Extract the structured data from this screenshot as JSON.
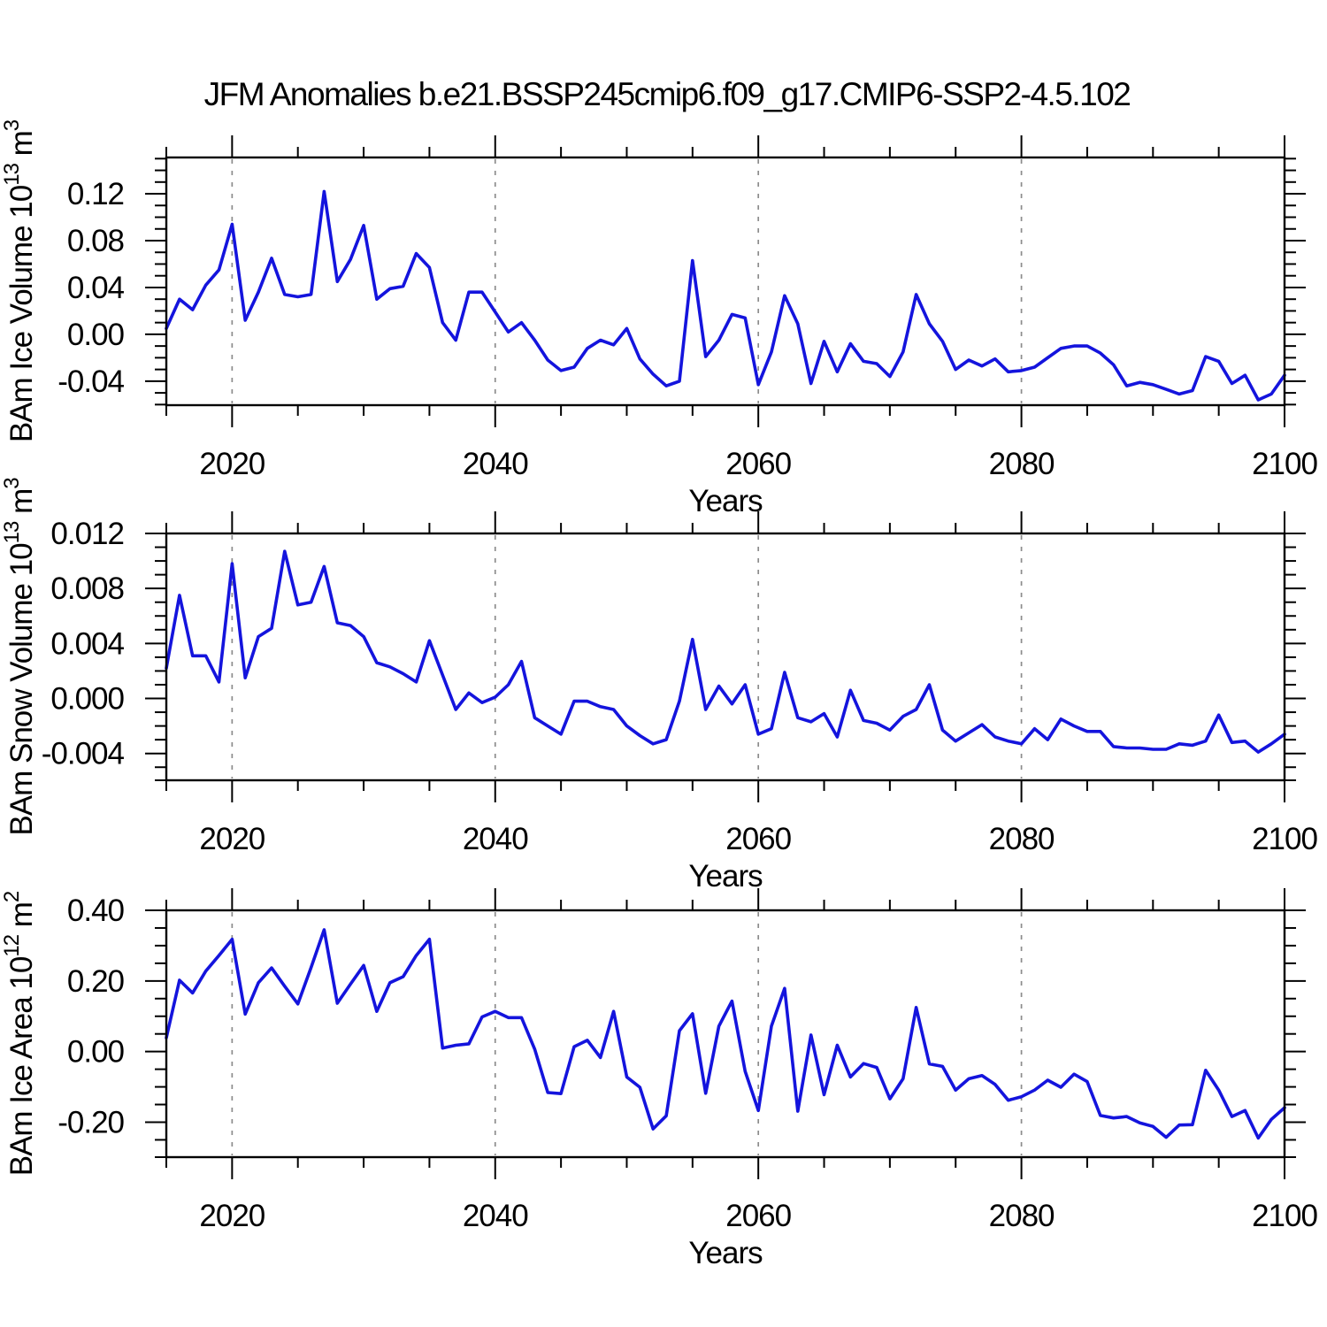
{
  "title": "JFM Anomalies b.e21.BSSP245cmip6.f09_g17.CMIP6-SSP2-4.5.102",
  "colors": {
    "line": "#1414dd",
    "grid": "#8c8c8c",
    "axis": "#000000",
    "text": "#000000",
    "background": "#ffffff"
  },
  "chart_data": [
    {
      "type": "line",
      "name": "bam-ice-volume",
      "ylabel_text": "BAm Ice Volume 10^13 m^3",
      "ylabel_parts": {
        "base": "BAm Ice Volume 10",
        "exp": "13",
        "mid": " m",
        "exp2": "3"
      },
      "xlabel": "Years",
      "xlim": [
        2015,
        2100
      ],
      "ylim": [
        -0.0605,
        0.151
      ],
      "x_major_ticks": [
        {
          "v": 2020,
          "label": "2020"
        },
        {
          "v": 2040,
          "label": "2040"
        },
        {
          "v": 2060,
          "label": "2060"
        },
        {
          "v": 2080,
          "label": "2080"
        },
        {
          "v": 2100,
          "label": "2100"
        }
      ],
      "x_minor_step": 5,
      "y_major_ticks": [
        {
          "v": 0.12,
          "label": "0.12"
        },
        {
          "v": 0.08,
          "label": "0.08"
        },
        {
          "v": 0.04,
          "label": "0.04"
        },
        {
          "v": 0.0,
          "label": "0.00"
        },
        {
          "v": -0.04,
          "label": "-0.04"
        }
      ],
      "y_minor_step": 0.01,
      "grid_x": [
        2020,
        2040,
        2060,
        2080
      ],
      "x_start": 2015,
      "x_step": 1,
      "values": [
        0.005,
        0.03,
        0.021,
        0.042,
        0.055,
        0.094,
        0.012,
        0.036,
        0.065,
        0.034,
        0.032,
        0.034,
        0.122,
        0.045,
        0.064,
        0.093,
        0.03,
        0.039,
        0.041,
        0.069,
        0.057,
        0.01,
        -0.005,
        0.036,
        0.036,
        0.019,
        0.002,
        0.01,
        -0.005,
        -0.022,
        -0.031,
        -0.028,
        -0.012,
        -0.005,
        -0.009,
        0.005,
        -0.021,
        -0.034,
        -0.044,
        -0.04,
        0.063,
        -0.019,
        -0.005,
        0.017,
        0.014,
        -0.043,
        -0.015,
        0.033,
        0.009,
        -0.042,
        -0.006,
        -0.032,
        -0.008,
        -0.023,
        -0.025,
        -0.036,
        -0.015,
        0.034,
        0.009,
        -0.006,
        -0.03,
        -0.022,
        -0.027,
        -0.021,
        -0.032,
        -0.031,
        -0.028,
        -0.02,
        -0.012,
        -0.01,
        -0.01,
        -0.016,
        -0.026,
        -0.044,
        -0.041,
        -0.043,
        -0.047,
        -0.051,
        -0.048,
        -0.019,
        -0.023,
        -0.042,
        -0.035,
        -0.056,
        -0.051,
        -0.035
      ]
    },
    {
      "type": "line",
      "name": "bam-snow-volume",
      "ylabel_text": "BAm Snow Volume 10^13 m^3",
      "ylabel_parts": {
        "base": "BAm Snow Volume 10",
        "exp": "13",
        "mid": " m",
        "exp2": "3"
      },
      "xlabel": "Years",
      "xlim": [
        2015,
        2100
      ],
      "ylim": [
        -0.00595,
        0.012
      ],
      "x_major_ticks": [
        {
          "v": 2020,
          "label": "2020"
        },
        {
          "v": 2040,
          "label": "2040"
        },
        {
          "v": 2060,
          "label": "2060"
        },
        {
          "v": 2080,
          "label": "2080"
        },
        {
          "v": 2100,
          "label": "2100"
        }
      ],
      "x_minor_step": 5,
      "y_major_ticks": [
        {
          "v": 0.012,
          "label": "0.012"
        },
        {
          "v": 0.008,
          "label": "0.008"
        },
        {
          "v": 0.004,
          "label": "0.004"
        },
        {
          "v": 0.0,
          "label": "0.000"
        },
        {
          "v": -0.004,
          "label": "-0.004"
        }
      ],
      "y_minor_step": 0.001,
      "grid_x": [
        2020,
        2040,
        2060,
        2080
      ],
      "x_start": 2015,
      "x_step": 1,
      "values": [
        0.0022,
        0.0075,
        0.0031,
        0.0031,
        0.0012,
        0.0098,
        0.0015,
        0.0045,
        0.0051,
        0.0107,
        0.0068,
        0.007,
        0.0096,
        0.0055,
        0.0053,
        0.0045,
        0.0026,
        0.0023,
        0.0018,
        0.0012,
        0.0042,
        0.0017,
        -0.0008,
        0.0004,
        -0.0003,
        0.0001,
        0.001,
        0.0027,
        -0.0014,
        -0.002,
        -0.0026,
        -0.0002,
        -0.0002,
        -0.0006,
        -0.0008,
        -0.002,
        -0.0027,
        -0.0033,
        -0.003,
        -0.0002,
        0.0043,
        -0.0008,
        0.0009,
        -0.0004,
        0.001,
        -0.0026,
        -0.0022,
        0.0019,
        -0.0014,
        -0.0017,
        -0.0011,
        -0.0028,
        0.0006,
        -0.0016,
        -0.0018,
        -0.0023,
        -0.0013,
        -0.0008,
        0.001,
        -0.0023,
        -0.0031,
        -0.0025,
        -0.0019,
        -0.0028,
        -0.0031,
        -0.0033,
        -0.0022,
        -0.003,
        -0.0015,
        -0.002,
        -0.0024,
        -0.0024,
        -0.0035,
        -0.0036,
        -0.0036,
        -0.0037,
        -0.0037,
        -0.0033,
        -0.0034,
        -0.0031,
        -0.0012,
        -0.0032,
        -0.0031,
        -0.0039,
        -0.0033,
        -0.0026
      ]
    },
    {
      "type": "line",
      "name": "bam-ice-area",
      "ylabel_text": "BAm Ice Area 10^12 m^2",
      "ylabel_parts": {
        "base": "BAm Ice Area 10",
        "exp": "12",
        "mid": " m",
        "exp2": "2"
      },
      "xlabel": "Years",
      "xlim": [
        2015,
        2100
      ],
      "ylim": [
        -0.299,
        0.4
      ],
      "x_major_ticks": [
        {
          "v": 2020,
          "label": "2020"
        },
        {
          "v": 2040,
          "label": "2040"
        },
        {
          "v": 2060,
          "label": "2060"
        },
        {
          "v": 2080,
          "label": "2080"
        },
        {
          "v": 2100,
          "label": "2100"
        }
      ],
      "x_minor_step": 5,
      "y_major_ticks": [
        {
          "v": 0.4,
          "label": "0.40"
        },
        {
          "v": 0.2,
          "label": "0.20"
        },
        {
          "v": 0.0,
          "label": "0.00"
        },
        {
          "v": -0.2,
          "label": "-0.20"
        }
      ],
      "y_minor_step": 0.05,
      "grid_x": [
        2020,
        2040,
        2060,
        2080
      ],
      "x_start": 2015,
      "x_step": 1,
      "values": [
        0.039,
        0.202,
        0.166,
        0.228,
        0.272,
        0.318,
        0.106,
        0.195,
        0.237,
        0.185,
        0.135,
        0.238,
        0.345,
        0.137,
        0.191,
        0.244,
        0.114,
        0.195,
        0.212,
        0.272,
        0.318,
        0.01,
        0.018,
        0.022,
        0.098,
        0.114,
        0.096,
        0.096,
        0.007,
        -0.116,
        -0.119,
        0.014,
        0.032,
        -0.017,
        0.114,
        -0.072,
        -0.101,
        -0.219,
        -0.182,
        0.059,
        0.107,
        -0.118,
        0.072,
        0.143,
        -0.056,
        -0.167,
        0.072,
        0.179,
        -0.169,
        0.047,
        -0.122,
        0.018,
        -0.072,
        -0.034,
        -0.045,
        -0.134,
        -0.077,
        0.125,
        -0.035,
        -0.042,
        -0.109,
        -0.077,
        -0.068,
        -0.093,
        -0.138,
        -0.128,
        -0.109,
        -0.081,
        -0.101,
        -0.064,
        -0.085,
        -0.181,
        -0.188,
        -0.184,
        -0.202,
        -0.212,
        -0.243,
        -0.208,
        -0.207,
        -0.053,
        -0.109,
        -0.184,
        -0.167,
        -0.245,
        -0.192,
        -0.159
      ]
    }
  ]
}
